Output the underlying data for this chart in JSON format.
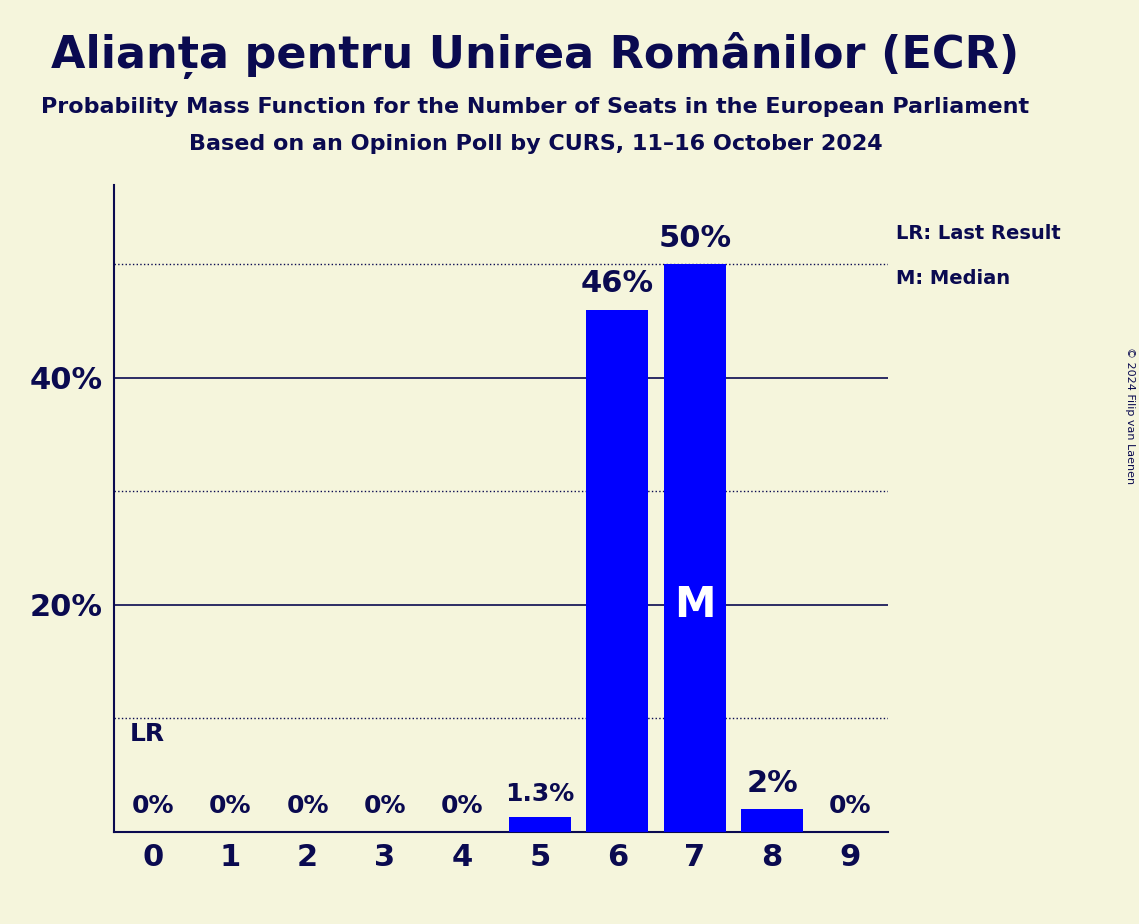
{
  "title": "Alianța pentru Unirea Românilor (ECR)",
  "subtitle1": "Probability Mass Function for the Number of Seats in the European Parliament",
  "subtitle2": "Based on an Opinion Poll by CURS, 11–16 October 2024",
  "copyright": "© 2024 Filip van Laenen",
  "seats": [
    0,
    1,
    2,
    3,
    4,
    5,
    6,
    7,
    8,
    9
  ],
  "probabilities": [
    0.0,
    0.0,
    0.0,
    0.0,
    0.0,
    1.3,
    46.0,
    50.0,
    2.0,
    0.0
  ],
  "bar_color": "#0000FF",
  "background_color": "#F5F5DC",
  "median_seat": 7,
  "last_result_seat": 0,
  "ylim": [
    0,
    57
  ],
  "solid_gridlines": [
    20,
    40
  ],
  "dotted_gridlines": [
    10,
    30,
    50
  ],
  "ylabel_ticks": [
    20,
    40
  ],
  "legend_lr": "LR: Last Result",
  "legend_m": "M: Median",
  "title_fontsize": 32,
  "subtitle_fontsize": 16,
  "bar_label_fontsize": 18,
  "axis_tick_fontsize": 22,
  "ylabel_fontsize": 22,
  "text_color": "#0a0a50"
}
